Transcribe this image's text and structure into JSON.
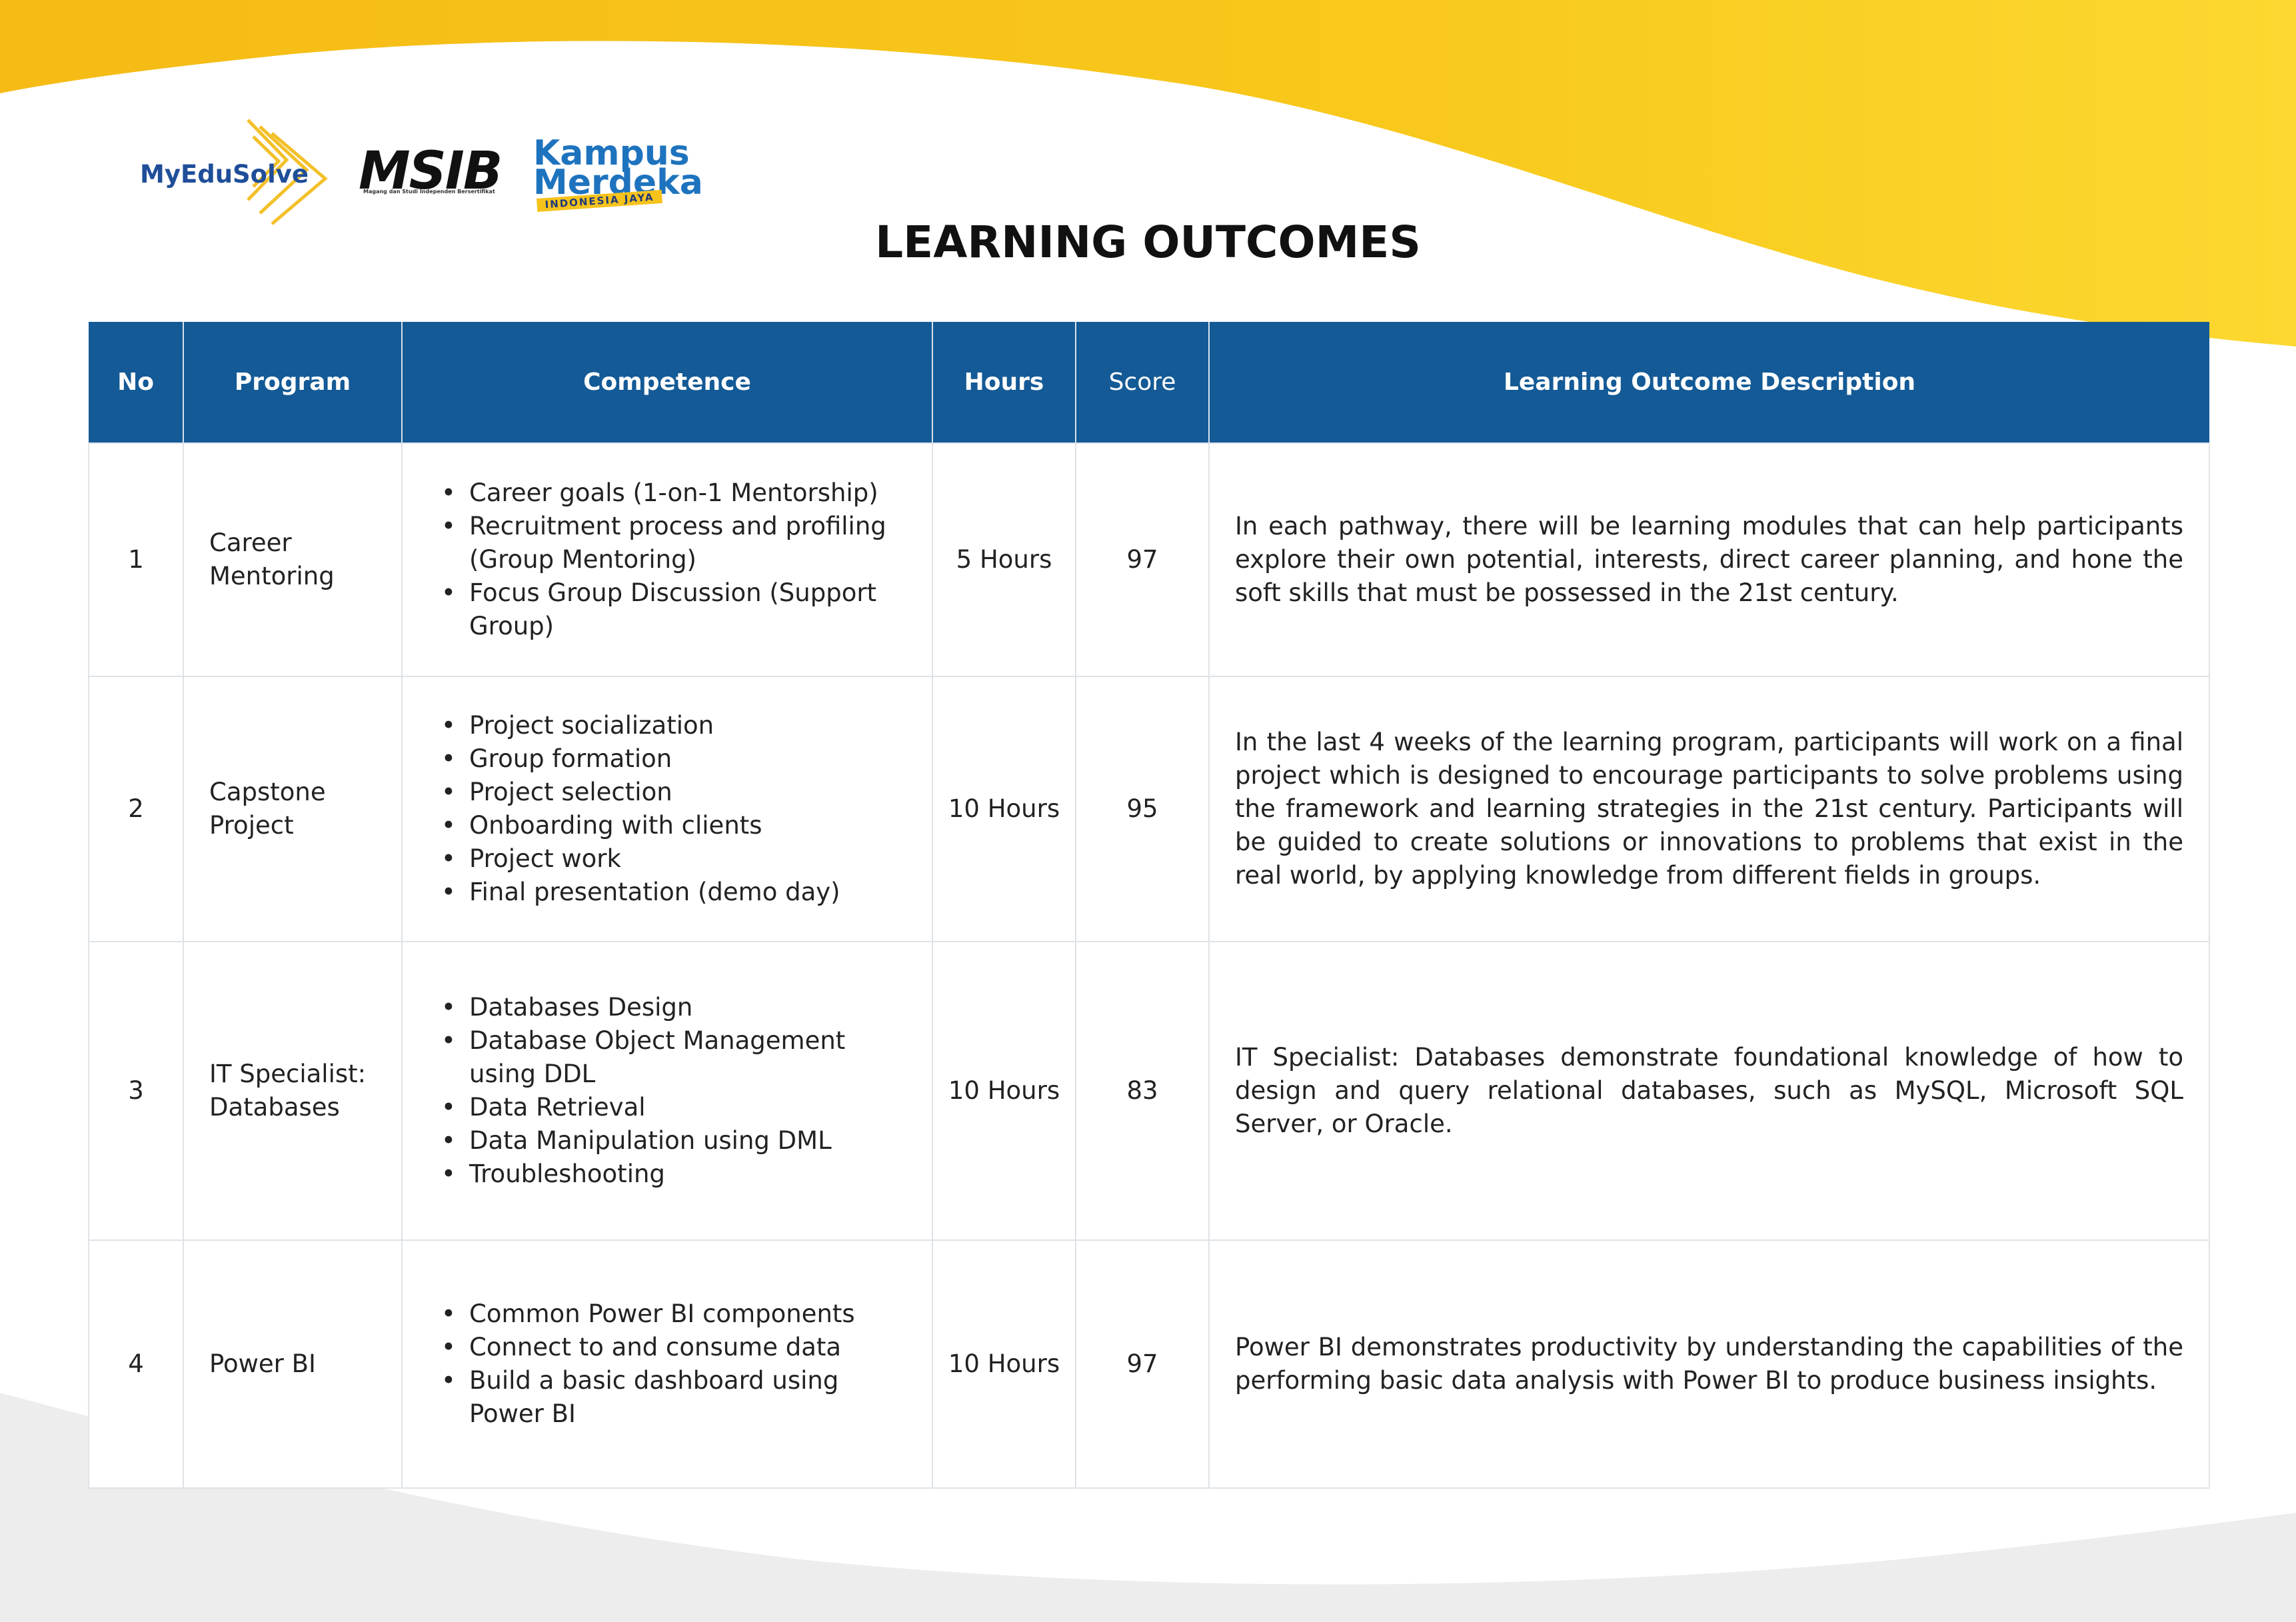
{
  "page": {
    "title": "LEARNING OUTCOMES"
  },
  "logos": {
    "myedusolve": "MyEduSolve",
    "msib": "MSIB",
    "msib_tagline": "Magang dan Studi Independen Bersertifikat",
    "kampus_merdeka_line1": "Kampus",
    "kampus_merdeka_line2": "Merdeka",
    "kampus_merdeka_band": "INDONESIA JAYA"
  },
  "colors": {
    "header_blue": "#145a96",
    "accent_yellow": "#f8c81b",
    "light_gray": "#eeeeee"
  },
  "table": {
    "headers": {
      "no": "No",
      "program": "Program",
      "competence": "Competence",
      "hours": "Hours",
      "score": "Score",
      "description": "Learning Outcome Description"
    },
    "rows": [
      {
        "no": "1",
        "program": "Career Mentoring",
        "competence": [
          "Career goals (1-on-1 Mentorship)",
          "Recruitment process and profiling (Group Mentoring)",
          "Focus Group Discussion (Support Group)"
        ],
        "hours": "5 Hours",
        "score": "97",
        "description": "In each pathway, there will be learning modules that can help participants explore their own potential, interests, direct career planning, and hone the soft skills that must be possessed in the 21st century."
      },
      {
        "no": "2",
        "program": "Capstone Project",
        "competence": [
          "Project socialization",
          "Group formation",
          "Project selection",
          "Onboarding with clients",
          "Project work",
          "Final presentation (demo day)"
        ],
        "hours": "10 Hours",
        "score": "95",
        "description": "In the last 4 weeks of the learning program, participants will work on a final project which is designed to encourage participants to solve problems using the framework and learning strategies in the 21st century. Participants will be guided to create solutions or innovations to problems that exist in the real world, by applying knowledge from different fields in groups."
      },
      {
        "no": "3",
        "program": "IT Specialist: Databases",
        "competence": [
          "Databases Design",
          "Database Object Management using DDL",
          "Data Retrieval",
          "Data Manipulation using DML",
          "Troubleshooting"
        ],
        "hours": "10 Hours",
        "score": "83",
        "description": "IT Specialist: Databases demonstrate foundational knowledge of how to design and query relational databases, such as MySQL, Microsoft SQL Server, or Oracle."
      },
      {
        "no": "4",
        "program": "Power BI",
        "competence": [
          "Common Power BI components",
          "Connect to and consume data",
          "Build a basic dashboard using Power BI"
        ],
        "hours": "10 Hours",
        "score": "97",
        "description": "Power BI demonstrates productivity by understanding the capabilities of the performing basic data analysis with Power BI to produce business insights."
      }
    ]
  }
}
